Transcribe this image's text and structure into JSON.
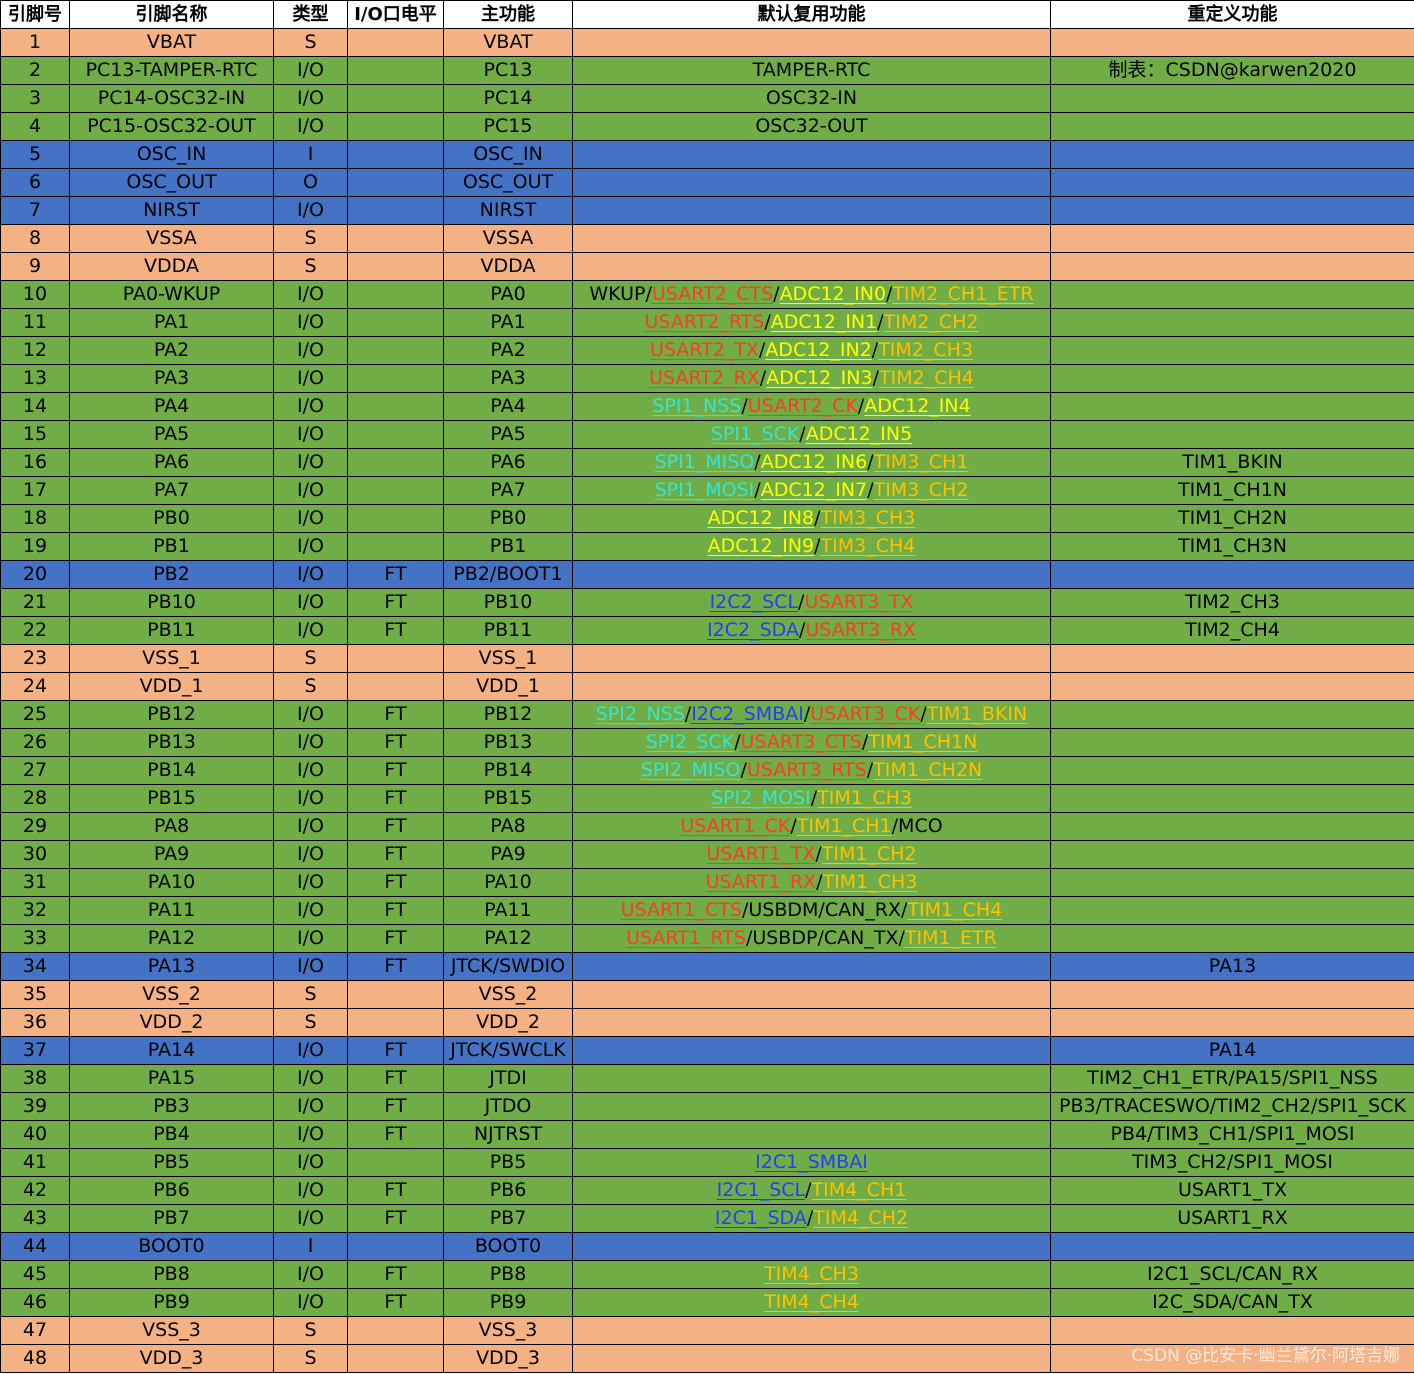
{
  "chart_data": {
    "type": "table",
    "columns": [
      "引脚号",
      "引脚名称",
      "类型",
      "I/O口电平",
      "主功能",
      "默认复用功能",
      "重定义功能"
    ],
    "group_colors": {
      "s": "#f4b183",
      "g": "#70ad47",
      "b": "#4472c4"
    },
    "seg_colors": {
      "k": "#000000",
      "r": "#ff3b1e",
      "y": "#ffff00",
      "o": "#ffc000",
      "c": "#33e5d6",
      "b": "#2040ff"
    },
    "rows": [
      {
        "g": "s",
        "c": [
          "1",
          "VBAT",
          "S",
          "",
          "VBAT"
        ],
        "alt": [],
        "remap": ""
      },
      {
        "g": "g",
        "c": [
          "2",
          "PC13-TAMPER-RTC",
          "I/O",
          "",
          "PC13"
        ],
        "alt": [
          [
            "TAMPER-RTC",
            "k"
          ]
        ],
        "remap": "制表：CSDN@karwen2020"
      },
      {
        "g": "g",
        "c": [
          "3",
          "PC14-OSC32-IN",
          "I/O",
          "",
          "PC14"
        ],
        "alt": [
          [
            "OSC32-IN",
            "k"
          ]
        ],
        "remap": ""
      },
      {
        "g": "g",
        "c": [
          "4",
          "PC15-OSC32-OUT",
          "I/O",
          "",
          "PC15"
        ],
        "alt": [
          [
            "OSC32-OUT",
            "k"
          ]
        ],
        "remap": ""
      },
      {
        "g": "b",
        "c": [
          "5",
          "OSC_IN",
          "I",
          "",
          "OSC_IN"
        ],
        "alt": [],
        "remap": ""
      },
      {
        "g": "b",
        "c": [
          "6",
          "OSC_OUT",
          "O",
          "",
          "OSC_OUT"
        ],
        "alt": [],
        "remap": ""
      },
      {
        "g": "b",
        "c": [
          "7",
          "NIRST",
          "I/O",
          "",
          "NIRST"
        ],
        "alt": [],
        "remap": ""
      },
      {
        "g": "s",
        "c": [
          "8",
          "VSSA",
          "S",
          "",
          "VSSA"
        ],
        "alt": [],
        "remap": ""
      },
      {
        "g": "s",
        "c": [
          "9",
          "VDDA",
          "S",
          "",
          "VDDA"
        ],
        "alt": [],
        "remap": ""
      },
      {
        "g": "g",
        "c": [
          "10",
          "PA0-WKUP",
          "I/O",
          "",
          "PA0"
        ],
        "alt": [
          [
            "WKUP",
            "k"
          ],
          [
            "/",
            "k"
          ],
          [
            "USART2_CTS",
            "r"
          ],
          [
            "/",
            "k"
          ],
          [
            "ADC12_IN0",
            "y"
          ],
          [
            "/",
            "k"
          ],
          [
            "TIM2_CH1_ETR",
            "o"
          ]
        ],
        "remap": ""
      },
      {
        "g": "g",
        "c": [
          "11",
          "PA1",
          "I/O",
          "",
          "PA1"
        ],
        "alt": [
          [
            "USART2_RTS",
            "r"
          ],
          [
            "/",
            "k"
          ],
          [
            "ADC12_IN1",
            "y"
          ],
          [
            "/",
            "k"
          ],
          [
            "TIM2_CH2",
            "o"
          ]
        ],
        "remap": ""
      },
      {
        "g": "g",
        "c": [
          "12",
          "PA2",
          "I/O",
          "",
          "PA2"
        ],
        "alt": [
          [
            "USART2_TX",
            "r"
          ],
          [
            "/",
            "k"
          ],
          [
            "ADC12_IN2",
            "y"
          ],
          [
            "/",
            "k"
          ],
          [
            "TIM2_CH3",
            "o"
          ]
        ],
        "remap": ""
      },
      {
        "g": "g",
        "c": [
          "13",
          "PA3",
          "I/O",
          "",
          "PA3"
        ],
        "alt": [
          [
            "USART2_RX",
            "r"
          ],
          [
            "/",
            "k"
          ],
          [
            "ADC12_IN3",
            "y"
          ],
          [
            "/",
            "k"
          ],
          [
            "TIM2_CH4",
            "o"
          ]
        ],
        "remap": ""
      },
      {
        "g": "g",
        "c": [
          "14",
          "PA4",
          "I/O",
          "",
          "PA4"
        ],
        "alt": [
          [
            "SPI1_NSS",
            "c"
          ],
          [
            "/",
            "k"
          ],
          [
            "USART2_CK",
            "r"
          ],
          [
            "/",
            "k"
          ],
          [
            "ADC12_IN4",
            "y"
          ]
        ],
        "remap": ""
      },
      {
        "g": "g",
        "c": [
          "15",
          "PA5",
          "I/O",
          "",
          "PA5"
        ],
        "alt": [
          [
            "SPI1_SCK",
            "c"
          ],
          [
            "/",
            "k"
          ],
          [
            "ADC12_IN5",
            "y"
          ]
        ],
        "remap": ""
      },
      {
        "g": "g",
        "c": [
          "16",
          "PA6",
          "I/O",
          "",
          "PA6"
        ],
        "alt": [
          [
            "SPI1_MISO",
            "c"
          ],
          [
            "/",
            "k"
          ],
          [
            "ADC12_IN6",
            "y"
          ],
          [
            "/",
            "k"
          ],
          [
            "TIM3_CH1",
            "o"
          ]
        ],
        "remap": "TIM1_BKIN"
      },
      {
        "g": "g",
        "c": [
          "17",
          "PA7",
          "I/O",
          "",
          "PA7"
        ],
        "alt": [
          [
            "SPI1_MOSI",
            "c"
          ],
          [
            "/",
            "k"
          ],
          [
            "ADC12_IN7",
            "y"
          ],
          [
            "/",
            "k"
          ],
          [
            "TIM3_CH2",
            "o"
          ]
        ],
        "remap": "TIM1_CH1N"
      },
      {
        "g": "g",
        "c": [
          "18",
          "PB0",
          "I/O",
          "",
          "PB0"
        ],
        "alt": [
          [
            "ADC12_IN8",
            "y"
          ],
          [
            "/",
            "k"
          ],
          [
            "TIM3_CH3",
            "o"
          ]
        ],
        "remap": "TIM1_CH2N"
      },
      {
        "g": "g",
        "c": [
          "19",
          "PB1",
          "I/O",
          "",
          "PB1"
        ],
        "alt": [
          [
            "ADC12_IN9",
            "y"
          ],
          [
            "/",
            "k"
          ],
          [
            "TIM3_CH4",
            "o"
          ]
        ],
        "remap": "TIM1_CH3N"
      },
      {
        "g": "b",
        "c": [
          "20",
          "PB2",
          "I/O",
          "FT",
          "PB2/BOOT1"
        ],
        "alt": [],
        "remap": ""
      },
      {
        "g": "g",
        "c": [
          "21",
          "PB10",
          "I/O",
          "FT",
          "PB10"
        ],
        "alt": [
          [
            "I2C2_SCL",
            "b"
          ],
          [
            "/",
            "k"
          ],
          [
            "USART3_TX",
            "r"
          ]
        ],
        "remap": "TIM2_CH3"
      },
      {
        "g": "g",
        "c": [
          "22",
          "PB11",
          "I/O",
          "FT",
          "PB11"
        ],
        "alt": [
          [
            "I2C2_SDA",
            "b"
          ],
          [
            "/",
            "k"
          ],
          [
            "USART3_RX",
            "r"
          ]
        ],
        "remap": "TIM2_CH4"
      },
      {
        "g": "s",
        "c": [
          "23",
          "VSS_1",
          "S",
          "",
          "VSS_1"
        ],
        "alt": [],
        "remap": ""
      },
      {
        "g": "s",
        "c": [
          "24",
          "VDD_1",
          "S",
          "",
          "VDD_1"
        ],
        "alt": [],
        "remap": ""
      },
      {
        "g": "g",
        "c": [
          "25",
          "PB12",
          "I/O",
          "FT",
          "PB12"
        ],
        "alt": [
          [
            "SPI2_NSS",
            "c"
          ],
          [
            "/",
            "k"
          ],
          [
            "I2C2_SMBAI",
            "b"
          ],
          [
            "/",
            "k"
          ],
          [
            "USART3_CK",
            "r"
          ],
          [
            "/",
            "k"
          ],
          [
            "TIM1_BKIN",
            "o"
          ]
        ],
        "remap": ""
      },
      {
        "g": "g",
        "c": [
          "26",
          "PB13",
          "I/O",
          "FT",
          "PB13"
        ],
        "alt": [
          [
            "SPI2_SCK",
            "c"
          ],
          [
            "/",
            "k"
          ],
          [
            "USART3_CTS",
            "r"
          ],
          [
            "/",
            "k"
          ],
          [
            "TIM1_CH1N",
            "o"
          ]
        ],
        "remap": ""
      },
      {
        "g": "g",
        "c": [
          "27",
          "PB14",
          "I/O",
          "FT",
          "PB14"
        ],
        "alt": [
          [
            "SPI2_MISO",
            "c"
          ],
          [
            "/",
            "k"
          ],
          [
            "USART3_RTS",
            "r"
          ],
          [
            "/",
            "k"
          ],
          [
            "TIM1_CH2N",
            "o"
          ]
        ],
        "remap": ""
      },
      {
        "g": "g",
        "c": [
          "28",
          "PB15",
          "I/O",
          "FT",
          "PB15"
        ],
        "alt": [
          [
            "SPI2_MOSI",
            "c"
          ],
          [
            "/",
            "k"
          ],
          [
            "TIM1_CH3",
            "o"
          ]
        ],
        "remap": ""
      },
      {
        "g": "g",
        "c": [
          "29",
          "PA8",
          "I/O",
          "FT",
          "PA8"
        ],
        "alt": [
          [
            "USART1_CK",
            "r"
          ],
          [
            "/",
            "k"
          ],
          [
            "TIM1_CH1",
            "o"
          ],
          [
            "/",
            "k"
          ],
          [
            "MCO",
            "k"
          ]
        ],
        "remap": ""
      },
      {
        "g": "g",
        "c": [
          "30",
          "PA9",
          "I/O",
          "FT",
          "PA9"
        ],
        "alt": [
          [
            "USART1_TX",
            "r"
          ],
          [
            "/",
            "k"
          ],
          [
            "TIM1_CH2",
            "o"
          ]
        ],
        "remap": ""
      },
      {
        "g": "g",
        "c": [
          "31",
          "PA10",
          "I/O",
          "FT",
          "PA10"
        ],
        "alt": [
          [
            "USART1_RX",
            "r"
          ],
          [
            "/",
            "k"
          ],
          [
            "TIM1_CH3",
            "o"
          ]
        ],
        "remap": ""
      },
      {
        "g": "g",
        "c": [
          "32",
          "PA11",
          "I/O",
          "FT",
          "PA11"
        ],
        "alt": [
          [
            "USART1_CTS",
            "r"
          ],
          [
            "/",
            "k"
          ],
          [
            "USBDM",
            "k"
          ],
          [
            "/",
            "k"
          ],
          [
            "CAN_RX",
            "k"
          ],
          [
            "/",
            "k"
          ],
          [
            "TIM1_CH4",
            "o"
          ]
        ],
        "remap": ""
      },
      {
        "g": "g",
        "c": [
          "33",
          "PA12",
          "I/O",
          "FT",
          "PA12"
        ],
        "alt": [
          [
            "USART1_RTS",
            "r"
          ],
          [
            "/",
            "k"
          ],
          [
            "USBDP",
            "k"
          ],
          [
            "/",
            "k"
          ],
          [
            "CAN_TX",
            "k"
          ],
          [
            "/",
            "k"
          ],
          [
            "TIM1_ETR",
            "o"
          ]
        ],
        "remap": ""
      },
      {
        "g": "b",
        "c": [
          "34",
          "PA13",
          "I/O",
          "FT",
          "JTCK/SWDIO"
        ],
        "alt": [],
        "remap": "PA13"
      },
      {
        "g": "s",
        "c": [
          "35",
          "VSS_2",
          "S",
          "",
          "VSS_2"
        ],
        "alt": [],
        "remap": ""
      },
      {
        "g": "s",
        "c": [
          "36",
          "VDD_2",
          "S",
          "",
          "VDD_2"
        ],
        "alt": [],
        "remap": ""
      },
      {
        "g": "b",
        "c": [
          "37",
          "PA14",
          "I/O",
          "FT",
          "JTCK/SWCLK"
        ],
        "alt": [],
        "remap": "PA14"
      },
      {
        "g": "g",
        "c": [
          "38",
          "PA15",
          "I/O",
          "FT",
          "JTDI"
        ],
        "alt": [],
        "remap": "TIM2_CH1_ETR/PA15/SPI1_NSS"
      },
      {
        "g": "g",
        "c": [
          "39",
          "PB3",
          "I/O",
          "FT",
          "JTDO"
        ],
        "alt": [],
        "remap": "PB3/TRACESWO/TIM2_CH2/SPI1_SCK"
      },
      {
        "g": "g",
        "c": [
          "40",
          "PB4",
          "I/O",
          "FT",
          "NJTRST"
        ],
        "alt": [],
        "remap": "PB4/TIM3_CH1/SPI1_MOSI"
      },
      {
        "g": "g",
        "c": [
          "41",
          "PB5",
          "I/O",
          "",
          "PB5"
        ],
        "alt": [
          [
            "I2C1_SMBAI",
            "b"
          ]
        ],
        "remap": "TIM3_CH2/SPI1_MOSI"
      },
      {
        "g": "g",
        "c": [
          "42",
          "PB6",
          "I/O",
          "FT",
          "PB6"
        ],
        "alt": [
          [
            "I2C1_SCL",
            "b"
          ],
          [
            "/",
            "k"
          ],
          [
            "TIM4_CH1",
            "o"
          ]
        ],
        "remap": "USART1_TX"
      },
      {
        "g": "g",
        "c": [
          "43",
          "PB7",
          "I/O",
          "FT",
          "PB7"
        ],
        "alt": [
          [
            "I2C1_SDA",
            "b"
          ],
          [
            "/",
            "k"
          ],
          [
            "TIM4_CH2",
            "o"
          ]
        ],
        "remap": "USART1_RX"
      },
      {
        "g": "b",
        "c": [
          "44",
          "BOOT0",
          "I",
          "",
          "BOOT0"
        ],
        "alt": [],
        "remap": ""
      },
      {
        "g": "g",
        "c": [
          "45",
          "PB8",
          "I/O",
          "FT",
          "PB8"
        ],
        "alt": [
          [
            "TIM4_CH3",
            "o"
          ]
        ],
        "remap": "I2C1_SCL/CAN_RX"
      },
      {
        "g": "g",
        "c": [
          "46",
          "PB9",
          "I/O",
          "FT",
          "PB9"
        ],
        "alt": [
          [
            "TIM4_CH4",
            "o"
          ]
        ],
        "remap": "I2C_SDA/CAN_TX"
      },
      {
        "g": "s",
        "c": [
          "47",
          "VSS_3",
          "S",
          "",
          "VSS_3"
        ],
        "alt": [],
        "remap": ""
      },
      {
        "g": "s",
        "c": [
          "48",
          "VDD_3",
          "S",
          "",
          "VDD_3"
        ],
        "alt": [],
        "remap": ""
      }
    ]
  },
  "watermark": "CSDN @比安卡·幽兰黛尔·阿塔吉娜"
}
